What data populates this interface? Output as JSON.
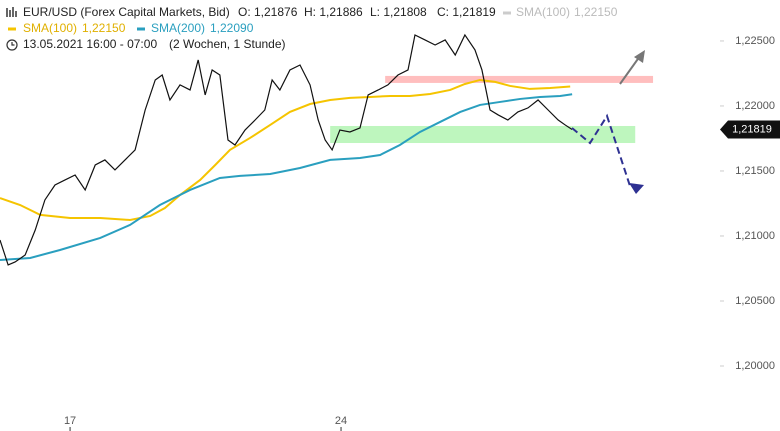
{
  "chart_data": {
    "type": "line",
    "title": "EUR/USD (Forex Capital Markets, Bid)",
    "header": {
      "ohlc": [
        "O: 1,21876",
        "H: 1,21886",
        "L: 1,21808",
        "C: 1,21819"
      ],
      "ghost_name": "SMA(100)",
      "ghost_value": "1,22150",
      "sma_values": [
        "1,22150",
        "1,22090"
      ],
      "date": "13.05.2021 16:00 - 07:00",
      "period": "(2 Wochen, 1 Stunde)"
    },
    "xlim": [
      15.19,
      33.79
    ],
    "xticks": [
      17,
      24
    ],
    "ylim": [
      1.195,
      1.22815
    ],
    "yticks": [
      {
        "value": 1.2,
        "label": "1,20000"
      },
      {
        "value": 1.205,
        "label": "1,20500"
      },
      {
        "value": 1.21,
        "label": "1,21000"
      },
      {
        "value": 1.215,
        "label": "1,21500"
      },
      {
        "value": 1.22,
        "label": "1,22000"
      },
      {
        "value": 1.225,
        "label": "1,22500"
      }
    ],
    "price": {
      "color": "#111111",
      "x": [
        15.19,
        15.4,
        15.58,
        15.84,
        16.1,
        16.35,
        16.61,
        16.87,
        17.13,
        17.39,
        17.65,
        17.9,
        18.16,
        18.42,
        18.68,
        18.94,
        19.2,
        19.38,
        19.58,
        19.84,
        20.1,
        20.31,
        20.49,
        20.67,
        20.87,
        21.08,
        21.26,
        21.52,
        21.78,
        22.03,
        22.22,
        22.42,
        22.68,
        22.94,
        23.2,
        23.41,
        23.59,
        23.77,
        23.97,
        24.23,
        24.49,
        24.7,
        24.96,
        25.21,
        25.47,
        25.73,
        25.91,
        26.17,
        26.43,
        26.69,
        26.95,
        27.2,
        27.46,
        27.64,
        27.85,
        28.06,
        28.31,
        28.57,
        28.83,
        29.09,
        29.35,
        29.61,
        29.79,
        29.97
      ],
      "values": [
        1.20969,
        1.20777,
        1.208,
        1.20854,
        1.21046,
        1.21277,
        1.21392,
        1.21431,
        1.21469,
        1.21354,
        1.21546,
        1.21585,
        1.21508,
        1.21585,
        1.21662,
        1.21969,
        1.222,
        1.22238,
        1.22046,
        1.22162,
        1.22123,
        1.22354,
        1.22085,
        1.22277,
        1.22238,
        1.21738,
        1.217,
        1.21815,
        1.21892,
        1.21969,
        1.222,
        1.22123,
        1.22277,
        1.22315,
        1.22162,
        1.21892,
        1.21738,
        1.21662,
        1.21815,
        1.218,
        1.21831,
        1.22085,
        1.22123,
        1.22162,
        1.22238,
        1.22277,
        1.22546,
        1.22508,
        1.22469,
        1.22508,
        1.22392,
        1.22546,
        1.22431,
        1.22277,
        1.21969,
        1.21931,
        1.21892,
        1.21954,
        1.21985,
        1.22046,
        1.21969,
        1.21892,
        1.21854,
        1.21819
      ]
    },
    "series": [
      {
        "name": "SMA(100)",
        "color": "#f5c400",
        "x": [
          15.19,
          15.71,
          16.23,
          17.0,
          17.78,
          18.55,
          19.07,
          19.45,
          19.84,
          20.36,
          20.75,
          21.13,
          21.65,
          22.17,
          22.68,
          23.2,
          23.72,
          24.23,
          24.75,
          25.27,
          25.78,
          26.3,
          26.82,
          27.2,
          27.59,
          27.98,
          28.37,
          28.88,
          29.4,
          29.92
        ],
        "values": [
          1.21292,
          1.21238,
          1.21162,
          1.21138,
          1.21138,
          1.21123,
          1.21154,
          1.21215,
          1.21315,
          1.21431,
          1.21546,
          1.21662,
          1.21754,
          1.21854,
          1.21954,
          1.22015,
          1.22046,
          1.22062,
          1.22069,
          1.22077,
          1.22077,
          1.22092,
          1.22123,
          1.22169,
          1.222,
          1.22185,
          1.22154,
          1.22131,
          1.22138,
          1.2215
        ]
      },
      {
        "name": "SMA(200)",
        "color": "#2a9fbf",
        "x": [
          15.19,
          15.97,
          16.74,
          17.78,
          18.55,
          19.32,
          20.1,
          20.87,
          21.39,
          22.17,
          22.94,
          23.72,
          24.49,
          25.01,
          25.52,
          26.04,
          26.56,
          27.08,
          27.59,
          28.11,
          28.63,
          29.14,
          29.66,
          29.97
        ],
        "values": [
          1.20815,
          1.20831,
          1.20892,
          1.20985,
          1.21085,
          1.21238,
          1.21354,
          1.21446,
          1.21462,
          1.21477,
          1.21523,
          1.21585,
          1.216,
          1.21623,
          1.217,
          1.218,
          1.21877,
          1.21954,
          1.22008,
          1.22031,
          1.22054,
          1.22069,
          1.22077,
          1.2209
        ]
      }
    ],
    "zones": [
      {
        "x": [
          25.14,
          32.06
        ],
        "y": [
          1.22177,
          1.22231
        ],
        "color": "#ffb3b3"
      },
      {
        "x": [
          23.72,
          31.6
        ],
        "y": [
          1.21715,
          1.21846
        ],
        "color": "#b3f5b3"
      }
    ],
    "last_price": {
      "value": 1.21819,
      "label": "1,21819"
    }
  }
}
